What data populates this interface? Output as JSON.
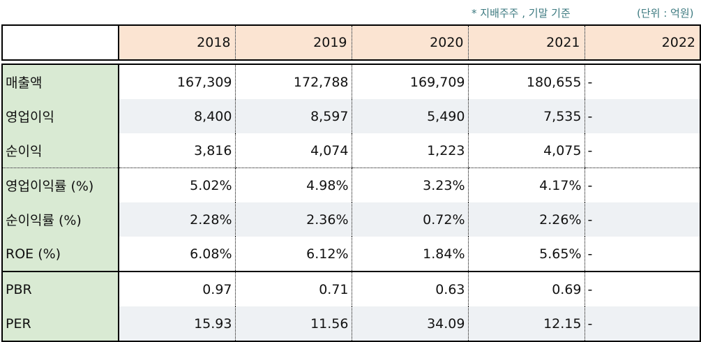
{
  "notes": {
    "basis": "* 지배주주 , 기말 기준",
    "unit": "(단위 : 억원)"
  },
  "table": {
    "years": [
      "2018",
      "2019",
      "2020",
      "2021",
      "2022"
    ],
    "rows": [
      {
        "label": "매출액",
        "values": [
          "167,309",
          "172,788",
          "169,709",
          "180,655"
        ],
        "last": "-"
      },
      {
        "label": "영업이익",
        "values": [
          "8,400",
          "8,597",
          "5,490",
          "7,535"
        ],
        "last": "-"
      },
      {
        "label": "순이익",
        "values": [
          "3,816",
          "4,074",
          "1,223",
          "4,075"
        ],
        "last": "-"
      },
      {
        "label": "영업이익률 (%)",
        "values": [
          "5.02%",
          "4.98%",
          "3.23%",
          "4.17%"
        ],
        "last": "-"
      },
      {
        "label": "순이익률 (%)",
        "values": [
          "2.28%",
          "2.36%",
          "0.72%",
          "2.26%"
        ],
        "last": "-"
      },
      {
        "label": "ROE (%)",
        "values": [
          "6.08%",
          "6.12%",
          "1.84%",
          "5.65%"
        ],
        "last": "-"
      },
      {
        "label": "PBR",
        "values": [
          "0.97",
          "0.71",
          "0.63",
          "0.69"
        ],
        "last": "-"
      },
      {
        "label": "PER",
        "values": [
          "15.93",
          "11.56",
          "34.09",
          "12.15"
        ],
        "last": "-"
      }
    ]
  },
  "colors": {
    "header_bg": "#fbe4d2",
    "label_bg": "#d9ead3",
    "row_shade": "#eef1f4",
    "note_text": "#3d7a80"
  }
}
